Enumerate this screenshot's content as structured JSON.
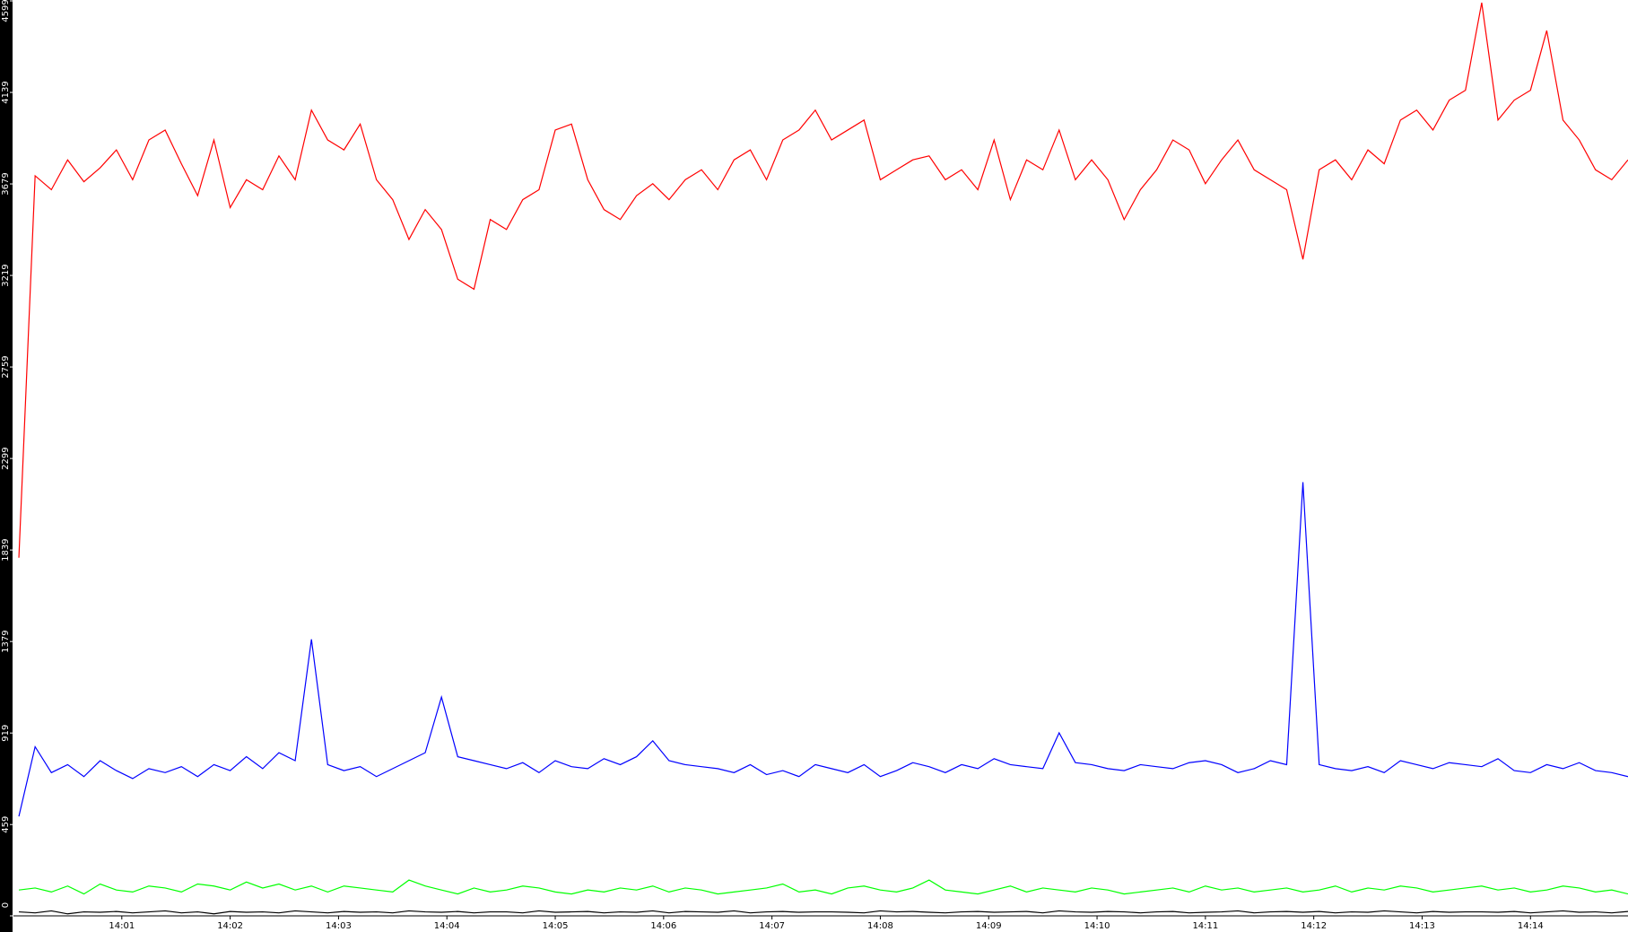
{
  "chart_data": {
    "type": "line",
    "x": [
      0.05,
      0.2,
      0.35,
      0.5,
      0.65,
      0.8,
      0.95,
      1.1,
      1.25,
      1.4,
      1.55,
      1.7,
      1.85,
      2,
      2.15,
      2.3,
      2.45,
      2.6,
      2.75,
      2.9,
      3.05,
      3.2,
      3.35,
      3.5,
      3.65,
      3.8,
      3.95,
      4.1,
      4.25,
      4.4,
      4.55,
      4.7,
      4.85,
      5,
      5.15,
      5.3,
      5.45,
      5.6,
      5.75,
      5.9,
      6.05,
      6.2,
      6.35,
      6.5,
      6.65,
      6.8,
      6.95,
      7.1,
      7.25,
      7.4,
      7.55,
      7.7,
      7.85,
      8,
      8.15,
      8.3,
      8.45,
      8.6,
      8.75,
      8.9,
      9.05,
      9.2,
      9.35,
      9.5,
      9.65,
      9.8,
      9.95,
      10.1,
      10.25,
      10.4,
      10.55,
      10.7,
      10.85,
      11,
      11.15,
      11.3,
      11.45,
      11.6,
      11.75,
      11.9,
      12.05,
      12.2,
      12.35,
      12.5,
      12.65,
      12.8,
      12.95,
      13.1,
      13.25,
      13.4,
      13.55,
      13.7,
      13.85,
      14,
      14.15,
      14.3,
      14.45,
      14.6,
      14.75,
      14.9
    ],
    "series": [
      {
        "color": "#ff0000",
        "values": [
          1800,
          3720,
          3650,
          3800,
          3690,
          3760,
          3850,
          3700,
          3900,
          3950,
          3780,
          3620,
          3900,
          3560,
          3700,
          3650,
          3820,
          3700,
          4050,
          3900,
          3850,
          3980,
          3700,
          3600,
          3400,
          3550,
          3450,
          3200,
          3150,
          3500,
          3450,
          3600,
          3650,
          3950,
          3980,
          3700,
          3550,
          3500,
          3620,
          3680,
          3600,
          3700,
          3750,
          3650,
          3800,
          3850,
          3700,
          3900,
          3950,
          4050,
          3900,
          3950,
          4000,
          3700,
          3750,
          3800,
          3820,
          3700,
          3750,
          3650,
          3900,
          3600,
          3800,
          3750,
          3950,
          3700,
          3800,
          3700,
          3500,
          3650,
          3750,
          3900,
          3850,
          3680,
          3800,
          3900,
          3750,
          3700,
          3650,
          3300,
          3750,
          3800,
          3700,
          3850,
          3780,
          4000,
          4050,
          3950,
          4100,
          4150,
          4590,
          4000,
          4100,
          4150,
          4450,
          4000,
          3900,
          3750,
          3700,
          3800
        ]
      },
      {
        "color": "#0000ff",
        "values": [
          500,
          850,
          720,
          760,
          700,
          780,
          730,
          690,
          740,
          720,
          750,
          700,
          760,
          730,
          800,
          740,
          820,
          780,
          1390,
          760,
          730,
          750,
          700,
          740,
          780,
          820,
          1100,
          800,
          780,
          760,
          740,
          770,
          720,
          780,
          750,
          740,
          790,
          760,
          800,
          880,
          780,
          760,
          750,
          740,
          720,
          760,
          710,
          730,
          700,
          760,
          740,
          720,
          760,
          700,
          730,
          770,
          750,
          720,
          760,
          740,
          790,
          760,
          750,
          740,
          920,
          770,
          760,
          740,
          730,
          760,
          750,
          740,
          770,
          780,
          760,
          720,
          740,
          780,
          760,
          2180,
          760,
          740,
          730,
          750,
          720,
          780,
          760,
          740,
          770,
          760,
          750,
          790,
          730,
          720,
          760,
          740,
          770,
          730,
          720,
          700
        ]
      },
      {
        "color": "#00ff00",
        "values": [
          130,
          140,
          120,
          150,
          110,
          160,
          130,
          120,
          150,
          140,
          120,
          160,
          150,
          130,
          170,
          140,
          160,
          130,
          150,
          120,
          150,
          140,
          130,
          120,
          180,
          150,
          130,
          110,
          140,
          120,
          130,
          150,
          140,
          120,
          110,
          130,
          120,
          140,
          130,
          150,
          120,
          140,
          130,
          110,
          120,
          130,
          140,
          160,
          120,
          130,
          110,
          140,
          150,
          130,
          120,
          140,
          180,
          130,
          120,
          110,
          130,
          150,
          120,
          140,
          130,
          120,
          140,
          130,
          110,
          120,
          130,
          140,
          120,
          150,
          130,
          140,
          120,
          130,
          140,
          120,
          130,
          150,
          120,
          140,
          130,
          150,
          140,
          120,
          130,
          140,
          150,
          130,
          140,
          120,
          130,
          150,
          140,
          120,
          130,
          110
        ]
      },
      {
        "color": "#000000",
        "values": [
          20,
          15,
          25,
          10,
          20,
          18,
          22,
          15,
          20,
          25,
          15,
          20,
          10,
          22,
          18,
          20,
          15,
          25,
          20,
          15,
          22,
          18,
          20,
          15,
          25,
          20,
          18,
          22,
          15,
          20,
          20,
          15,
          25,
          18,
          20,
          22,
          15,
          20,
          18,
          25,
          15,
          22,
          20,
          18,
          25,
          15,
          20,
          22,
          18,
          20,
          20,
          18,
          15,
          25,
          20,
          22,
          18,
          15,
          20,
          22,
          18,
          20,
          22,
          15,
          25,
          20,
          18,
          22,
          20,
          15,
          20,
          22,
          15,
          18,
          20,
          25,
          15,
          20,
          22,
          18,
          22,
          15,
          20,
          18,
          25,
          20,
          15,
          22,
          18,
          20,
          20,
          18,
          22,
          15,
          20,
          25,
          18,
          20,
          15,
          22
        ]
      }
    ],
    "xlim": [
      0,
      14.9
    ],
    "xticks": [
      {
        "value": 1,
        "label": "14:01"
      },
      {
        "value": 2,
        "label": "14:02"
      },
      {
        "value": 3,
        "label": "14:03"
      },
      {
        "value": 4,
        "label": "14:04"
      },
      {
        "value": 5,
        "label": "14:05"
      },
      {
        "value": 6,
        "label": "14:06"
      },
      {
        "value": 7,
        "label": "14:07"
      },
      {
        "value": 8,
        "label": "14:08"
      },
      {
        "value": 9,
        "label": "14:09"
      },
      {
        "value": 10,
        "label": "14:10"
      },
      {
        "value": 11,
        "label": "14:11"
      },
      {
        "value": 12,
        "label": "14:12"
      },
      {
        "value": 13,
        "label": "14:13"
      },
      {
        "value": 14,
        "label": "14:14"
      }
    ],
    "ylim": [
      0,
      4599
    ],
    "yticks": [
      0,
      459,
      919,
      1379,
      1839,
      2299,
      2759,
      3219,
      3679,
      4139,
      4599
    ]
  }
}
